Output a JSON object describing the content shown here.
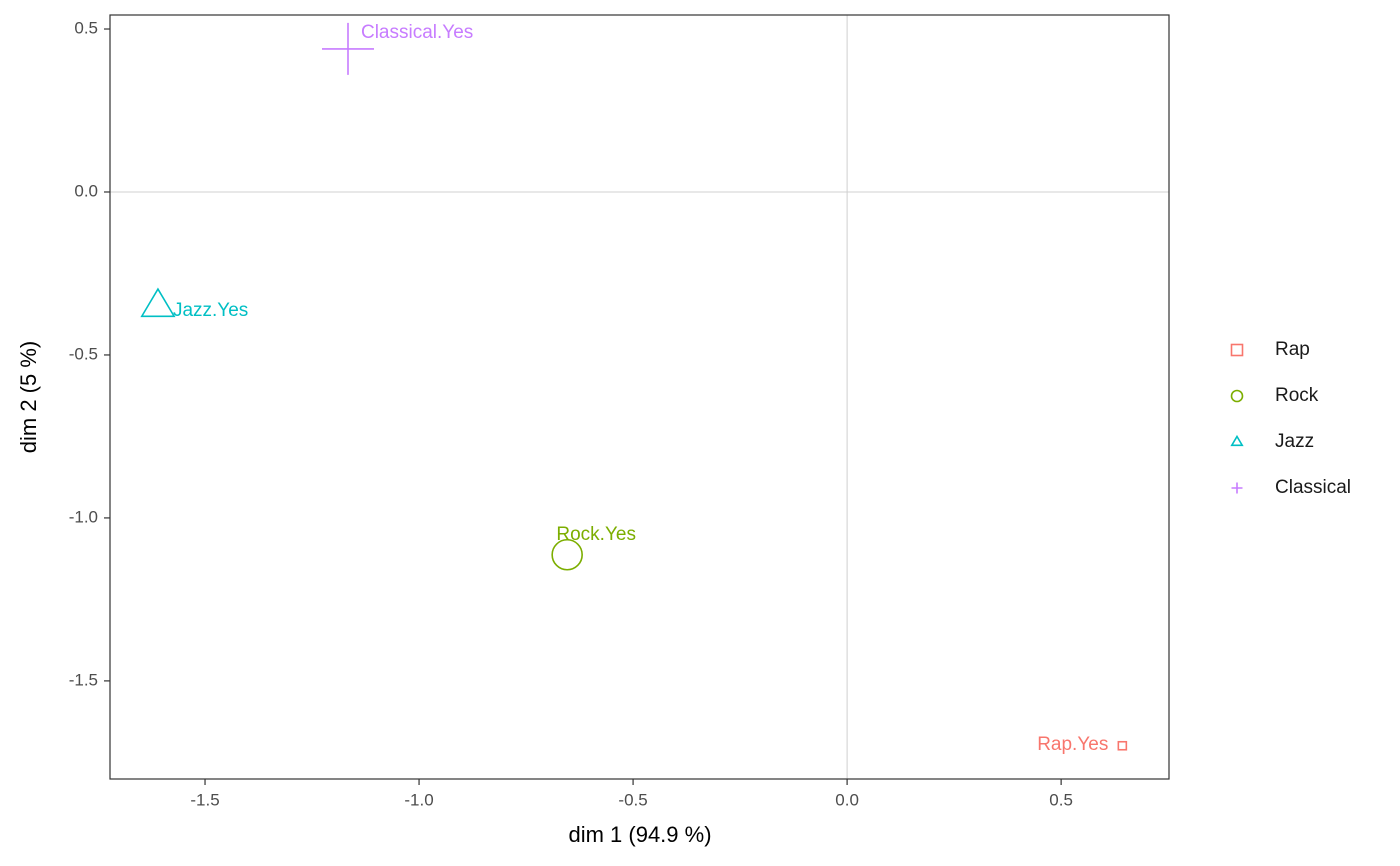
{
  "chart_data": {
    "type": "scatter",
    "x_label": "dim 1 (94.9 %)",
    "y_label": "dim 2 (5 %)",
    "xlim": [
      -1.722,
      0.752
    ],
    "ylim": [
      -1.801,
      0.543
    ],
    "xticks": [
      -1.5,
      {
        "value": -1.0,
        "label": "-1.0"
      },
      -0.5,
      {
        "value": 0.0,
        "label": "0.0"
      },
      0.5
    ],
    "yticks": [
      0.5,
      {
        "value": 0.0,
        "label": "0.0"
      },
      -0.5,
      {
        "value": -1.0,
        "label": "-1.0"
      },
      -1.5
    ],
    "reference_lines": {
      "x": 0,
      "y": 0
    },
    "legend": "right",
    "series": [
      {
        "name": "Rap",
        "color": "#F8766D",
        "shape": "square",
        "x": [
          0.643
        ],
        "values": [
          -1.699
        ],
        "sizes": [
          4
        ],
        "labels": [
          "Rap.Yes"
        ]
      },
      {
        "name": "Rock",
        "color": "#7CAE00",
        "shape": "circle",
        "x": [
          -0.654
        ],
        "values": [
          -1.113
        ],
        "sizes": [
          15
        ],
        "labels": [
          "Rock.Yes"
        ]
      },
      {
        "name": "Jazz",
        "color": "#00BFC4",
        "shape": "triangle",
        "x": [
          -1.61
        ],
        "values": [
          -0.35
        ],
        "sizes": [
          17
        ],
        "labels": [
          "Jazz.Yes"
        ]
      },
      {
        "name": "Classical",
        "color": "#C77CFF",
        "shape": "plus",
        "x": [
          -1.166
        ],
        "values": [
          0.439
        ],
        "sizes": [
          26
        ],
        "labels": [
          "Classical.Yes"
        ]
      }
    ]
  }
}
